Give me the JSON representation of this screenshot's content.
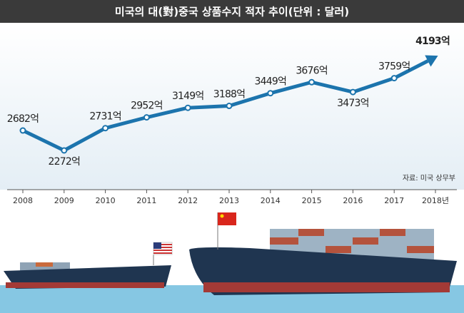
{
  "chart_data": {
    "type": "line",
    "title": "미국의 대(對)중국 상품수지 적자 추이(단위 : 달러)",
    "source": "자료: 미국 상무부",
    "categories": [
      "2008",
      "2009",
      "2010",
      "2011",
      "2012",
      "2013",
      "2014",
      "2015",
      "2016",
      "2017",
      "2018년"
    ],
    "values": [
      2682,
      2272,
      2731,
      2952,
      3149,
      3188,
      3449,
      3676,
      3473,
      3759,
      4193
    ],
    "value_labels": [
      "2682억",
      "2272억",
      "2731억",
      "2952억",
      "3149억",
      "3188억",
      "3449억",
      "3676억",
      "3473억",
      "3759억",
      "4193억"
    ],
    "color": "#1c74ad"
  }
}
